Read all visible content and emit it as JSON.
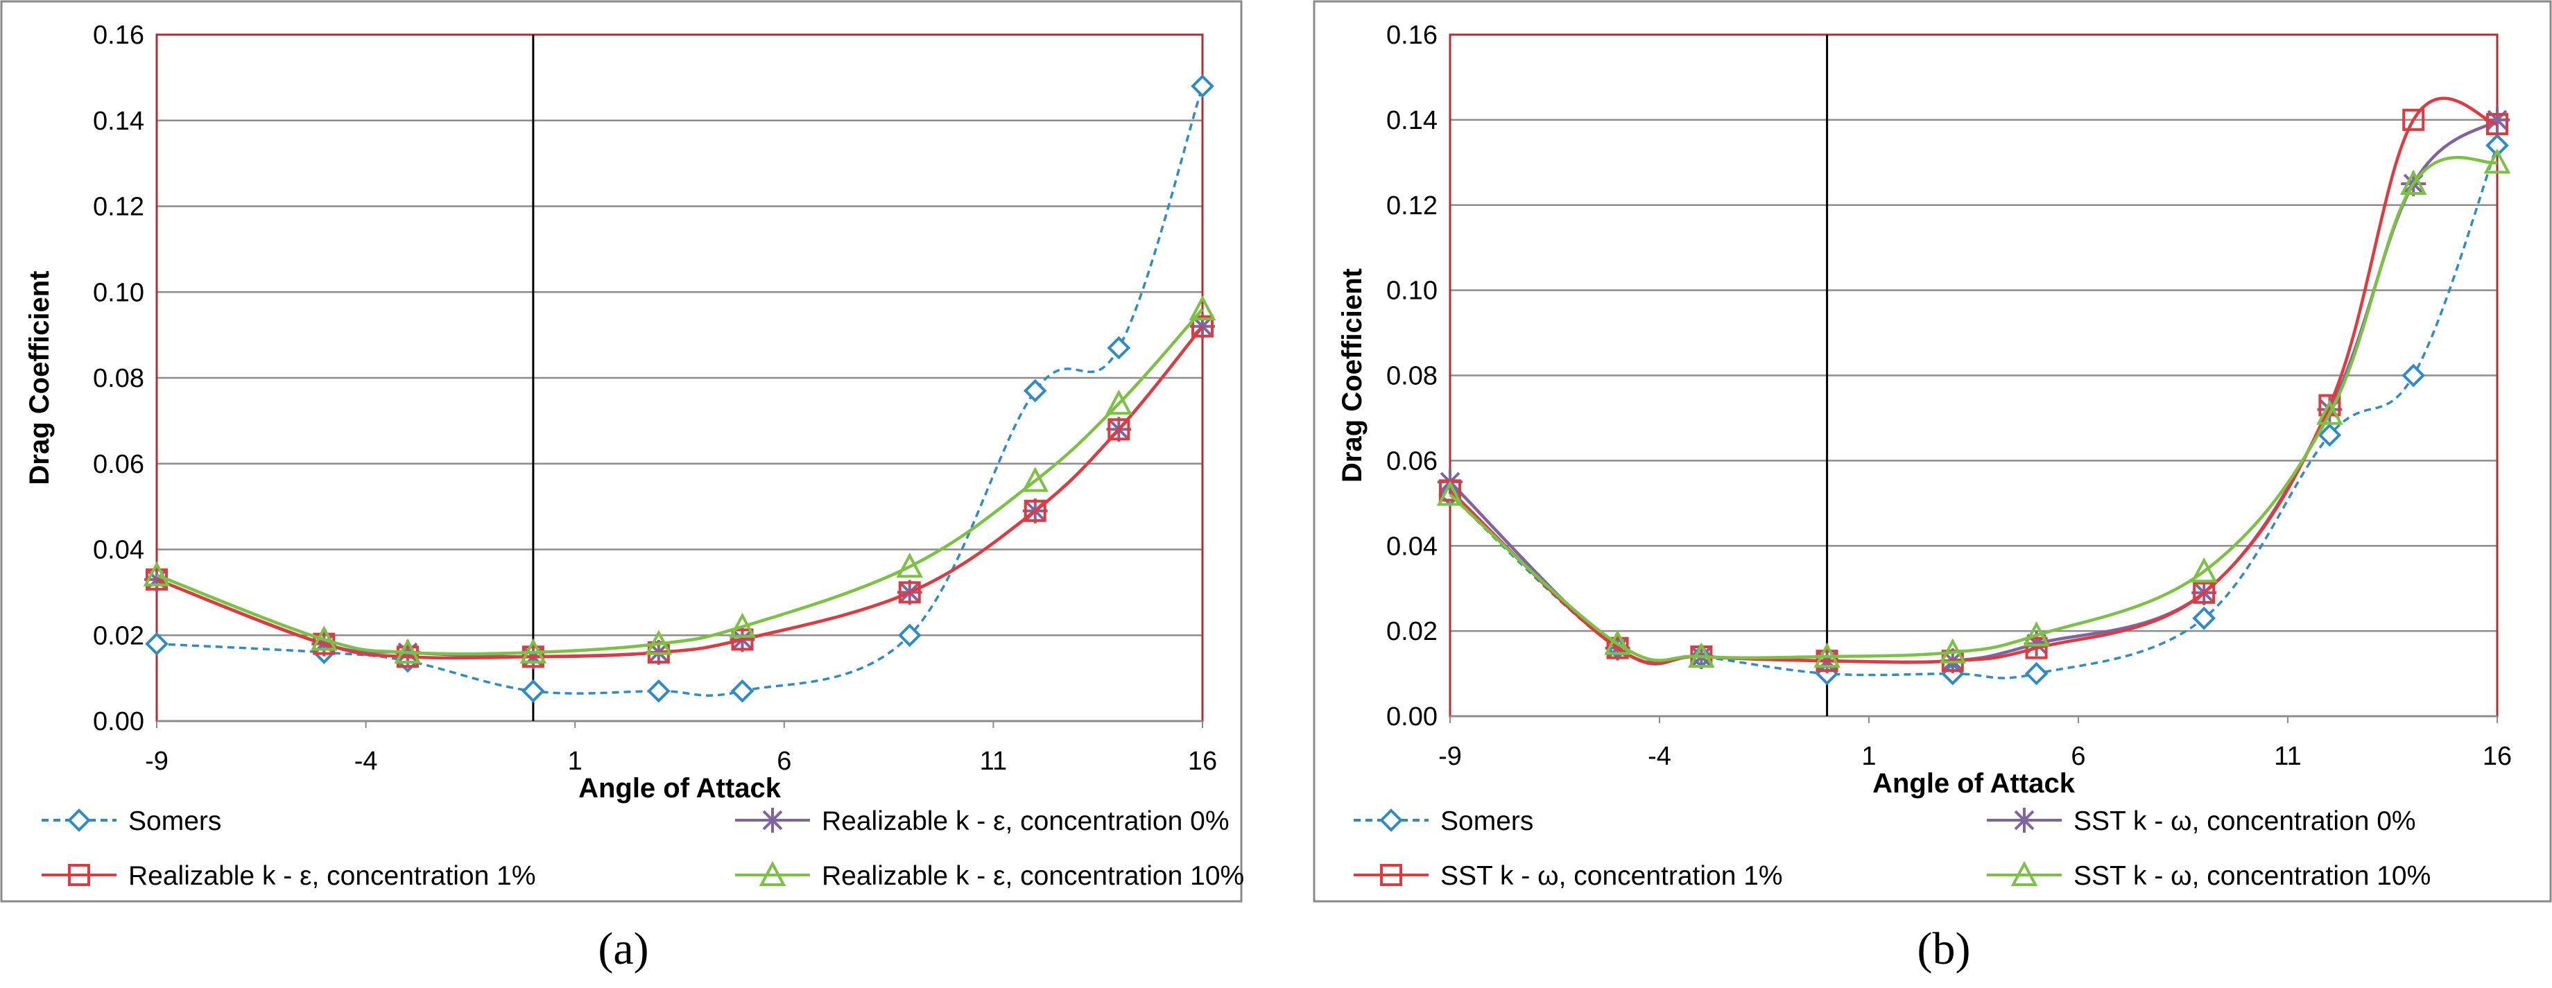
{
  "chart_data": [
    {
      "type": "line",
      "panel_label": "(a)",
      "xlabel": "Angle of Attack",
      "ylabel": "Drag Coefficient",
      "xlim": [
        -9,
        16
      ],
      "ylim": [
        0,
        0.16
      ],
      "xticks": [
        -9,
        -4,
        1,
        6,
        11,
        16
      ],
      "yticks": [
        "0.00",
        "0.02",
        "0.04",
        "0.06",
        "0.08",
        "0.10",
        "0.12",
        "0.14",
        "0.16"
      ],
      "zero_line_x": 0,
      "series": [
        {
          "name": "Somers",
          "color": "#2e8bc9",
          "dash": true,
          "marker": "diamond",
          "x": [
            -9,
            -5,
            -3,
            0,
            3,
            5,
            9,
            12,
            14,
            16
          ],
          "y": [
            0.018,
            0.016,
            0.014,
            0.007,
            0.007,
            0.007,
            0.02,
            0.077,
            0.087,
            0.148
          ]
        },
        {
          "name": "Realizable k - ε, concentration 0%",
          "color": "#8064a2",
          "dash": false,
          "marker": "star",
          "x": [
            -9,
            -5,
            -3,
            0,
            3,
            5,
            9,
            12,
            14,
            16
          ],
          "y": [
            0.033,
            0.018,
            0.016,
            0.015,
            0.016,
            0.019,
            0.03,
            0.049,
            0.068,
            0.092
          ]
        },
        {
          "name": "Realizable k - ε, concentration 1%",
          "color": "#e0393e",
          "dash": false,
          "marker": "square",
          "x": [
            -9,
            -5,
            -3,
            0,
            3,
            5,
            9,
            12,
            14,
            16
          ],
          "y": [
            0.033,
            0.018,
            0.015,
            0.015,
            0.016,
            0.019,
            0.03,
            0.049,
            0.068,
            0.092
          ]
        },
        {
          "name": "Realizable k - ε, concentration 10%",
          "color": "#7bc142",
          "dash": false,
          "marker": "triangle",
          "x": [
            -9,
            -5,
            -3,
            0,
            3,
            5,
            9,
            12,
            14,
            16
          ],
          "y": [
            0.034,
            0.019,
            0.016,
            0.016,
            0.018,
            0.022,
            0.036,
            0.056,
            0.074,
            0.096
          ]
        }
      ]
    },
    {
      "type": "line",
      "panel_label": "(b)",
      "xlabel": "Angle of Attack",
      "ylabel": "Drag Coefficient",
      "xlim": [
        -9,
        16
      ],
      "ylim": [
        0,
        0.16
      ],
      "xticks": [
        -9,
        -4,
        1,
        6,
        11,
        16
      ],
      "yticks": [
        "0.00",
        "0.02",
        "0.04",
        "0.06",
        "0.08",
        "0.10",
        "0.12",
        "0.14",
        "0.16"
      ],
      "zero_line_x": 0,
      "series": [
        {
          "name": "Somers",
          "color": "#2e8bc9",
          "dash": true,
          "marker": "diamond",
          "x": [
            -9,
            -5,
            -3,
            0,
            3,
            5,
            9,
            12,
            14,
            16
          ],
          "y": [
            0.052,
            0.016,
            0.014,
            0.01,
            0.01,
            0.01,
            0.023,
            0.066,
            0.08,
            0.134
          ]
        },
        {
          "name": "SST k - ω, concentration 0%",
          "color": "#8064a2",
          "dash": false,
          "marker": "star",
          "x": [
            -9,
            -5,
            -3,
            0,
            3,
            5,
            9,
            12,
            14,
            16
          ],
          "y": [
            0.055,
            0.016,
            0.014,
            0.013,
            0.013,
            0.017,
            0.029,
            0.072,
            0.125,
            0.14
          ]
        },
        {
          "name": "SST k - ω, concentration 1%",
          "color": "#e0393e",
          "dash": false,
          "marker": "square",
          "x": [
            -9,
            -5,
            -3,
            0,
            3,
            5,
            9,
            12,
            14,
            16
          ],
          "y": [
            0.053,
            0.016,
            0.014,
            0.013,
            0.013,
            0.016,
            0.029,
            0.073,
            0.14,
            0.139
          ]
        },
        {
          "name": "SST k - ω, concentration 10%",
          "color": "#7bc142",
          "dash": false,
          "marker": "triangle",
          "x": [
            -9,
            -5,
            -3,
            0,
            3,
            5,
            9,
            12,
            14,
            16
          ],
          "y": [
            0.052,
            0.017,
            0.014,
            0.014,
            0.015,
            0.019,
            0.034,
            0.071,
            0.125,
            0.13
          ]
        }
      ]
    }
  ]
}
